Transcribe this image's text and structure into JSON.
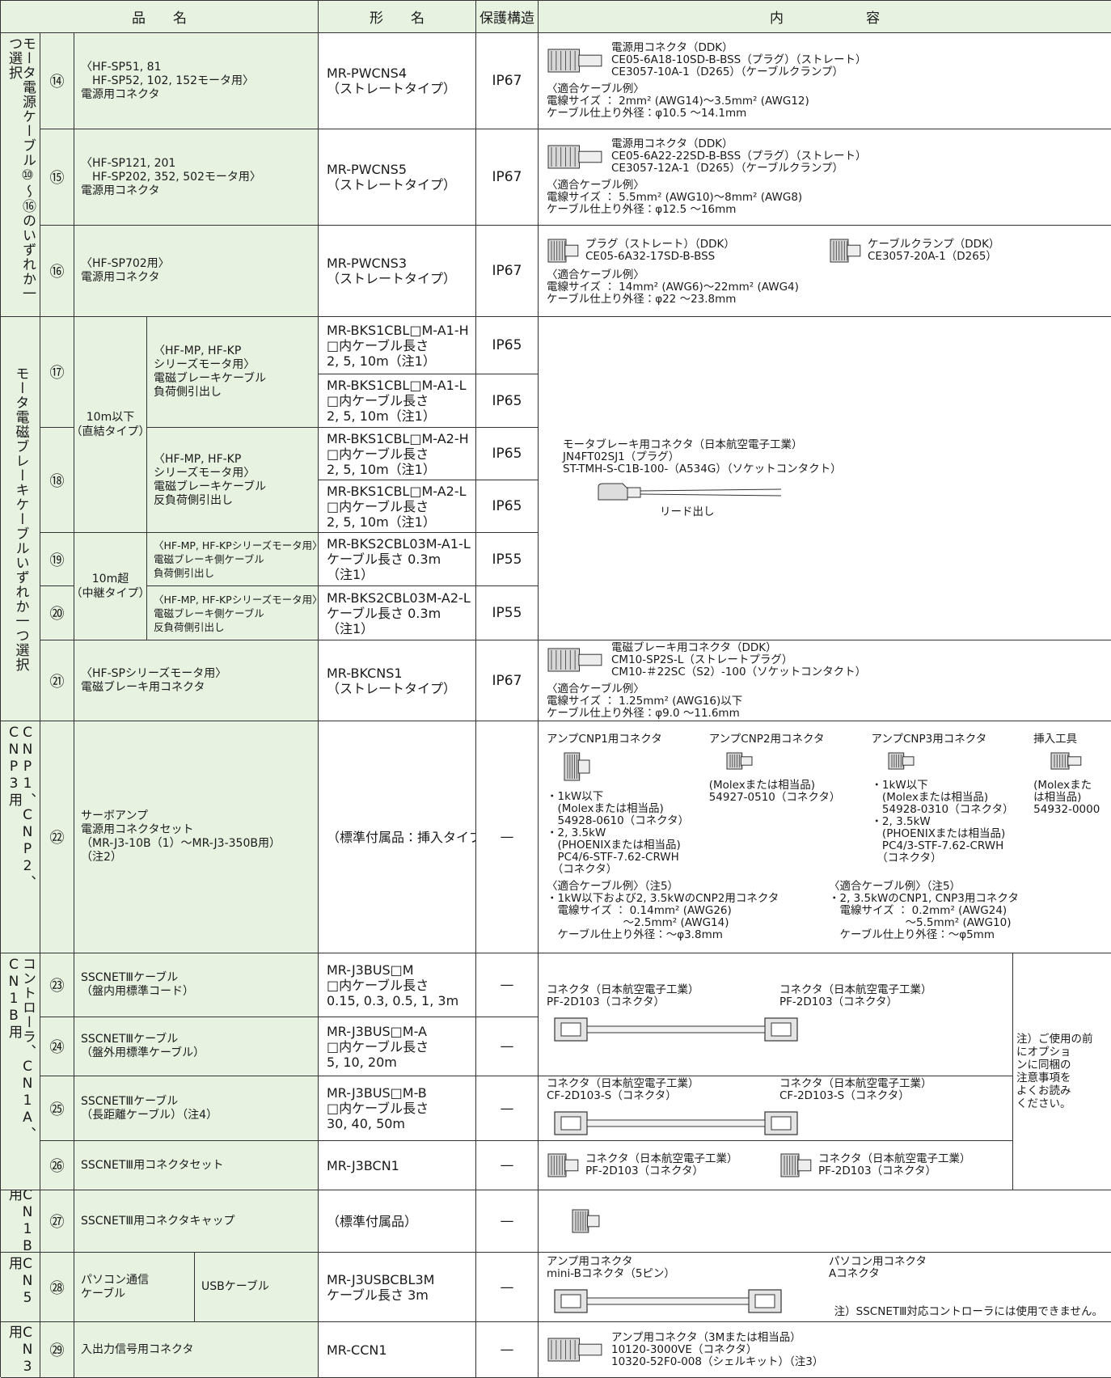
{
  "header": {
    "name": "品　　名",
    "model": "形　　名",
    "protection": "保護構造",
    "content": "内　　　　　　容"
  },
  "groups": [
    "モータ電源ケーブル⑩〜⑯のいずれか一つ選択",
    "モータ電磁ブレーキケーブルいずれか一つ選択",
    "CNP1、CNP2、CNP3用",
    "コントローラ、CN1A、CN1B用",
    "CN1B用",
    "CN5用",
    "CN3用"
  ],
  "items": [
    {
      "no": "⑭",
      "name": [
        "〈HF-SP51, 81",
        "　HF-SP52, 102, 152モータ用〉",
        "電源用コネクタ"
      ],
      "model": [
        "MR-PWCNS4",
        "（ストレートタイプ）"
      ],
      "protection": "IP67",
      "content": {
        "parts": [
          "電源用コネクタ（DDK）",
          "CE05-6A18-10SD-B-BSS（プラグ）（ストレート）",
          "CE3057-10A-1（D265）（ケーブルクランプ）"
        ],
        "cable": [
          "〈適合ケーブル例〉",
          "電線サイズ ： 2mm² (AWG14)〜3.5mm² (AWG12)",
          "ケーブル仕上り外径：φ10.5 〜14.1mm"
        ]
      }
    },
    {
      "no": "⑮",
      "name": [
        "〈HF-SP121, 201",
        "　HF-SP202, 352, 502モータ用〉",
        "電源用コネクタ"
      ],
      "model": [
        "MR-PWCNS5",
        "（ストレートタイプ）"
      ],
      "protection": "IP67",
      "content": {
        "parts": [
          "電源用コネクタ（DDK）",
          "CE05-6A22-22SD-B-BSS（プラグ）（ストレート）",
          "CE3057-12A-1（D265）（ケーブルクランプ）"
        ],
        "cable": [
          "〈適合ケーブル例〉",
          "電線サイズ ： 5.5mm² (AWG10)〜8mm² (AWG8)",
          "ケーブル仕上り外径：φ12.5 〜16mm"
        ]
      }
    },
    {
      "no": "⑯",
      "name": [
        "〈HF-SP702用〉",
        "電源用コネクタ"
      ],
      "model": [
        "MR-PWCNS3",
        "（ストレートタイプ）"
      ],
      "protection": "IP67",
      "content": {
        "parts": [
          [
            "プラグ（ストレート）（DDK）",
            "CE05-6A32-17SD-B-BSS"
          ],
          [
            "ケーブルクランプ（DDK）",
            "CE3057-20A-1（D265）"
          ]
        ],
        "cable": [
          "〈適合ケーブル例〉",
          "電線サイズ ： 14mm² (AWG6)〜22mm² (AWG4)",
          "ケーブル仕上り外径：φ22 〜23.8mm"
        ]
      }
    },
    {
      "no": "⑰",
      "length_type": [
        "10m以下",
        "（直結タイプ）"
      ],
      "name": [
        "〈HF-MP, HF-KP",
        "シリーズモータ用〉",
        "電磁ブレーキケーブル",
        "負荷側引出し"
      ],
      "variants": [
        {
          "model": [
            "MR-BKS1CBL□M-A1-H",
            "□内ケーブル長さ",
            "2, 5, 10m（注1）"
          ],
          "protection": "IP65"
        },
        {
          "model": [
            "MR-BKS1CBL□M-A1-L",
            "□内ケーブル長さ",
            "2, 5, 10m（注1）"
          ],
          "protection": "IP65"
        }
      ]
    },
    {
      "no": "⑱",
      "name": [
        "〈HF-MP, HF-KP",
        "シリーズモータ用〉",
        "電磁ブレーキケーブル",
        "反負荷側引出し"
      ],
      "variants": [
        {
          "model": [
            "MR-BKS1CBL□M-A2-H",
            "□内ケーブル長さ",
            "2, 5, 10m（注1）"
          ],
          "protection": "IP65"
        },
        {
          "model": [
            "MR-BKS1CBL□M-A2-L",
            "□内ケーブル長さ",
            "2, 5, 10m（注1）"
          ],
          "protection": "IP65"
        }
      ]
    },
    {
      "no": "⑲",
      "length_type": [
        "10m超",
        "（中継タイプ）"
      ],
      "name": [
        "〈HF-MP, HF-KPシリーズモータ用〉",
        "電磁ブレーキ側ケーブル",
        "負荷側引出し"
      ],
      "model": [
        "MR-BKS2CBL03M-A1-L",
        "ケーブル長さ 0.3m",
        "（注1）"
      ],
      "protection": "IP55"
    },
    {
      "no": "⑳",
      "name": [
        "〈HF-MP, HF-KPシリーズモータ用〉",
        "電磁ブレーキ側ケーブル",
        "反負荷側引出し"
      ],
      "model": [
        "MR-BKS2CBL03M-A2-L",
        "ケーブル長さ 0.3m",
        "（注1）"
      ],
      "protection": "IP55"
    },
    {
      "no": "㉑",
      "name": [
        "〈HF-SPシリーズモータ用〉",
        "電磁ブレーキ用コネクタ"
      ],
      "model": [
        "MR-BKCNS1",
        "（ストレートタイプ）"
      ],
      "protection": "IP67",
      "content": {
        "parts": [
          "電磁ブレーキ用コネクタ（DDK）",
          "CM10-SP2S-L（ストレートプラグ）",
          "CM10-＃22SC（S2）-100（ソケットコンタクト）"
        ],
        "cable": [
          "〈適合ケーブル例〉",
          "電線サイズ ： 1.25mm² (AWG16)以下",
          "ケーブル仕上り外径：φ9.0 〜11.6mm"
        ]
      }
    },
    {
      "no": "㉒",
      "name": [
        "サーボアンプ",
        "電源用コネクタセット",
        "（MR-J3-10B（1）〜MR-J3-350B用）",
        "（注2）"
      ],
      "model": [
        "（標準付属品：挿入タイプ）"
      ],
      "protection": "—",
      "content": {
        "parts": [
          [
            "アンプCNP1用コネクタ",
            "・1kW以下",
            "　(Molexまたは相当品)",
            "　54928-0610（コネクタ）",
            "・2, 3.5kW",
            "　(PHOENIXまたは相当品)",
            "　PC4/6-STF-7.62-CRWH",
            "　（コネクタ）"
          ],
          [
            "アンプCNP2用コネクタ",
            "(Molexまたは相当品)",
            "54927-0510（コネクタ）"
          ],
          [
            "アンプCNP3用コネクタ",
            "・1kW以下",
            "　(Molexまたは相当品)",
            "　54928-0310（コネクタ）",
            "・2, 3.5kW",
            "　(PHOENIXまたは相当品)",
            "　PC4/3-STF-7.62-CRWH",
            "　（コネクタ）"
          ],
          [
            "挿入工具",
            "(Molexまた",
            "は相当品)",
            "54932-0000"
          ]
        ],
        "cable": [
          [
            "〈適合ケーブル例〉（注5）",
            "・1kW以下および2, 3.5kWのCNP2用コネクタ",
            "　電線サイズ ： 0.14mm² (AWG26)",
            "　　　　　　　〜2.5mm² (AWG14)",
            "　ケーブル仕上り外径：〜φ3.8mm"
          ],
          [
            "〈適合ケーブル例〉（注5）",
            "・2, 3.5kWのCNP1, CNP3用コネクタ",
            "　電線サイズ ： 0.2mm² (AWG24)",
            "　　　　　　　〜5.5mm² (AWG10)",
            "　ケーブル仕上り外径：〜φ5mm"
          ]
        ]
      }
    },
    {
      "no": "㉓",
      "name": [
        "SSCNETⅢケーブル",
        "（盤内用標準コード）"
      ],
      "model": [
        "MR-J3BUS□M",
        "□内ケーブル長さ",
        "0.15, 0.3, 0.5, 1, 3m"
      ],
      "protection": "—",
      "content": {
        "parts": [
          [
            "コネクタ（日本航空電子工業）",
            "PF-2D103（コネクタ）"
          ],
          [
            "コネクタ（日本航空電子工業）",
            "PF-2D103（コネクタ）"
          ]
        ]
      }
    },
    {
      "no": "㉔",
      "name": [
        "SSCNETⅢケーブル",
        "（盤外用標準ケーブル）"
      ],
      "model": [
        "MR-J3BUS□M-A",
        "□内ケーブル長さ",
        "5, 10, 20m"
      ],
      "protection": "—"
    },
    {
      "no": "㉕",
      "name": [
        "SSCNETⅢケーブル",
        "（長距離ケーブル）（注4）"
      ],
      "model": [
        "MR-J3BUS□M-B",
        "□内ケーブル長さ",
        "30, 40, 50m"
      ],
      "protection": "—",
      "content": {
        "parts": [
          [
            "コネクタ（日本航空電子工業）",
            "CF-2D103-S（コネクタ）"
          ],
          [
            "コネクタ（日本航空電子工業）",
            "CF-2D103-S（コネクタ）"
          ]
        ]
      }
    },
    {
      "no": "㉖",
      "name": [
        "SSCNETⅢ用コネクタセット"
      ],
      "model": [
        "MR-J3BCN1"
      ],
      "protection": "—",
      "content": {
        "parts": [
          [
            "コネクタ（日本航空電子工業）",
            "PF-2D103（コネクタ）"
          ],
          [
            "コネクタ（日本航空電子工業）",
            "PF-2D103（コネクタ）"
          ]
        ]
      }
    },
    {
      "no": "㉗",
      "name": [
        "SSCNETⅢ用コネクタキャップ"
      ],
      "model": [
        "（標準付属品）"
      ],
      "protection": "—"
    },
    {
      "no": "㉘",
      "name": [
        "パソコン通信",
        "ケーブル"
      ],
      "sub_name": "USBケーブル",
      "model": [
        "MR-J3USBCBL3M",
        "ケーブル長さ 3m"
      ],
      "protection": "—",
      "content": {
        "parts": [
          [
            "アンプ用コネクタ",
            "mini-Bコネクタ（5ピン）"
          ],
          [
            "パソコン用コネクタ",
            "Aコネクタ"
          ]
        ],
        "note": "注）SSCNETⅢ対応コントローラには使用できません。"
      }
    },
    {
      "no": "㉙",
      "name": [
        "入出力信号用コネクタ"
      ],
      "model": [
        "MR-CCN1"
      ],
      "protection": "—",
      "content": {
        "parts": [
          "アンプ用コネクタ（3Mまたは相当品）",
          "10120-3000VE（コネクタ）",
          "10320-52F0-008（シェルキット）（注3）"
        ]
      }
    }
  ],
  "brake_content": {
    "parts": [
      "モータブレーキ用コネクタ（日本航空電子工業）",
      "JN4FT02SJ1（プラグ）",
      "ST-TMH-S-C1B-100-（A534G）（ソケットコンタクト）"
    ],
    "note": "リード出し"
  },
  "sscnet_note": [
    "注）ご使用の前",
    "にオプショ",
    "ンに同梱の",
    "注意事項を",
    "よくお読み",
    "ください。"
  ]
}
